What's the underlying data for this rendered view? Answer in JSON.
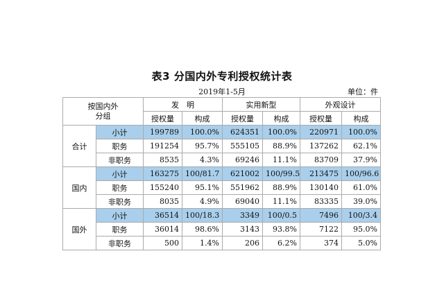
{
  "title": "表3  分国内外专利授权统计表",
  "subtitle": "2019年1-5月",
  "unit": "单位：件",
  "header": {
    "corner_line1": "按国内外",
    "corner_line2": "分组",
    "categories": [
      "发　明",
      "实用新型",
      "外观设计"
    ],
    "sub_labels": [
      "授权量",
      "构成"
    ]
  },
  "groups": [
    {
      "name": "合计",
      "rows": [
        {
          "label": "小计",
          "highlight": true,
          "values": [
            "199789",
            "100.0%",
            "624351",
            "100.0%",
            "220971",
            "100.0%"
          ]
        },
        {
          "label": "职务",
          "highlight": false,
          "values": [
            "191254",
            "95.7%",
            "555105",
            "88.9%",
            "137262",
            "62.1%"
          ]
        },
        {
          "label": "非职务",
          "highlight": false,
          "values": [
            "8535",
            "4.3%",
            "69246",
            "11.1%",
            "83709",
            "37.9%"
          ]
        }
      ]
    },
    {
      "name": "国内",
      "rows": [
        {
          "label": "小计",
          "highlight": true,
          "values": [
            "163275",
            "100/81.7",
            "621002",
            "100/99.5",
            "213475",
            "100/96.6"
          ]
        },
        {
          "label": "职务",
          "highlight": false,
          "values": [
            "155240",
            "95.1%",
            "551962",
            "88.9%",
            "130140",
            "61.0%"
          ]
        },
        {
          "label": "非职务",
          "highlight": false,
          "values": [
            "8035",
            "4.9%",
            "69040",
            "11.1%",
            "83335",
            "39.0%"
          ]
        }
      ]
    },
    {
      "name": "国外",
      "rows": [
        {
          "label": "小计",
          "highlight": true,
          "values": [
            "36514",
            "100/18.3",
            "3349",
            "100/0.5",
            "7496",
            "100/3.4"
          ]
        },
        {
          "label": "职务",
          "highlight": false,
          "values": [
            "36014",
            "98.6%",
            "3143",
            "93.8%",
            "7122",
            "95.0%"
          ]
        },
        {
          "label": "非职务",
          "highlight": false,
          "values": [
            "500",
            "1.4%",
            "206",
            "6.2%",
            "374",
            "5.0%"
          ]
        }
      ]
    }
  ]
}
